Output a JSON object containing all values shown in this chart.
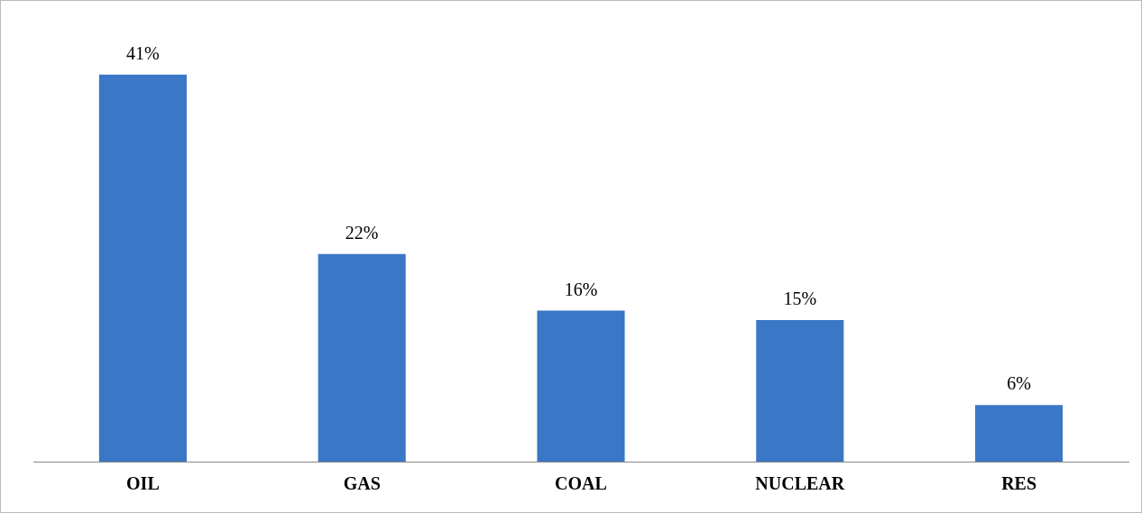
{
  "chart_data": {
    "type": "bar",
    "categories": [
      "OIL",
      "GAS",
      "COAL",
      "NUCLEAR",
      "RES"
    ],
    "values": [
      41,
      22,
      16,
      15,
      6
    ],
    "value_labels": [
      "41%",
      "22%",
      "16%",
      "15%",
      "6%"
    ],
    "color": "#3a77c6",
    "grid": false,
    "legend": false
  }
}
